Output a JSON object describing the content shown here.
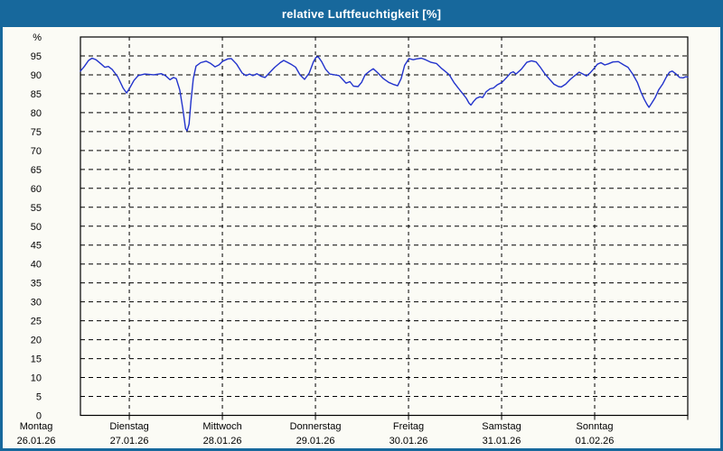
{
  "window": {
    "title": "relative Luftfeuchtigkeit [%]",
    "title_bar_color": "#17689c",
    "frame_color": "#17689c",
    "background_color": "#fbfbf5"
  },
  "chart_data": {
    "type": "line",
    "title": "relative Luftfeuchtigkeit [%]",
    "ylabel": "%",
    "xlabel": "",
    "unit_top_label": "%",
    "line_color": "#2233cc",
    "grid_color": "#000000",
    "grid_style": "dashed",
    "legend": "none",
    "ylim": [
      0,
      100
    ],
    "ytick_step": 5,
    "yticks": [
      0,
      5,
      10,
      15,
      20,
      25,
      30,
      35,
      40,
      45,
      50,
      55,
      60,
      65,
      70,
      75,
      80,
      85,
      90,
      95
    ],
    "x_start_hour": 11.4,
    "x_end_hour": 168,
    "hours_per_day": 24,
    "days": [
      {
        "name": "Montag",
        "date": "26.01.26"
      },
      {
        "name": "Dienstag",
        "date": "27.01.26"
      },
      {
        "name": "Mittwoch",
        "date": "28.01.26"
      },
      {
        "name": "Donnerstag",
        "date": "29.01.26"
      },
      {
        "name": "Freitag",
        "date": "30.01.26"
      },
      {
        "name": "Samstag",
        "date": "31.01.26"
      },
      {
        "name": "Sonntag",
        "date": "01.02.26"
      }
    ],
    "series": [
      {
        "name": "relative Luftfeuchtigkeit",
        "points": [
          [
            11.4,
            91.0
          ],
          [
            12.4,
            92.2
          ],
          [
            13.5,
            93.8
          ],
          [
            14.4,
            94.4
          ],
          [
            15.4,
            94.0
          ],
          [
            16.8,
            92.8
          ],
          [
            17.7,
            92.0
          ],
          [
            18.6,
            92.2
          ],
          [
            19.6,
            91.4
          ],
          [
            21.0,
            89.5
          ],
          [
            22.4,
            86.5
          ],
          [
            23.3,
            85.2
          ],
          [
            24.1,
            86.5
          ],
          [
            25.2,
            88.5
          ],
          [
            26.3,
            89.8
          ],
          [
            28.0,
            90.2
          ],
          [
            30.3,
            90.0
          ],
          [
            32.2,
            90.3
          ],
          [
            33.3,
            89.8
          ],
          [
            34.5,
            88.7
          ],
          [
            35.4,
            89.3
          ],
          [
            36.1,
            89.0
          ],
          [
            37.0,
            86.0
          ],
          [
            37.8,
            81.0
          ],
          [
            38.5,
            75.8
          ],
          [
            38.9,
            75.2
          ],
          [
            39.4,
            77.0
          ],
          [
            39.9,
            83.0
          ],
          [
            40.5,
            89.0
          ],
          [
            41.2,
            92.3
          ],
          [
            42.4,
            93.2
          ],
          [
            43.8,
            93.6
          ],
          [
            45.0,
            93.0
          ],
          [
            46.1,
            92.1
          ],
          [
            47.1,
            92.6
          ],
          [
            48.1,
            93.6
          ],
          [
            49.4,
            94.2
          ],
          [
            50.3,
            94.3
          ],
          [
            51.7,
            92.8
          ],
          [
            53.1,
            90.5
          ],
          [
            54.1,
            89.8
          ],
          [
            55.0,
            90.2
          ],
          [
            55.9,
            89.8
          ],
          [
            56.9,
            90.3
          ],
          [
            58.0,
            89.6
          ],
          [
            59.0,
            89.3
          ],
          [
            60.1,
            90.5
          ],
          [
            61.5,
            92.0
          ],
          [
            62.9,
            93.2
          ],
          [
            63.8,
            93.8
          ],
          [
            64.8,
            93.3
          ],
          [
            65.7,
            92.8
          ],
          [
            66.9,
            92.0
          ],
          [
            68.0,
            90.0
          ],
          [
            69.2,
            88.8
          ],
          [
            70.4,
            90.5
          ],
          [
            71.5,
            93.5
          ],
          [
            72.1,
            94.6
          ],
          [
            72.7,
            94.8
          ],
          [
            73.6,
            93.5
          ],
          [
            74.6,
            91.5
          ],
          [
            75.7,
            90.2
          ],
          [
            76.9,
            90.0
          ],
          [
            78.1,
            89.8
          ],
          [
            79.0,
            88.8
          ],
          [
            79.9,
            87.8
          ],
          [
            80.9,
            88.2
          ],
          [
            81.8,
            87.0
          ],
          [
            83.0,
            86.9
          ],
          [
            83.9,
            88.0
          ],
          [
            84.8,
            90.0
          ],
          [
            86.0,
            91.0
          ],
          [
            86.9,
            91.6
          ],
          [
            88.1,
            90.5
          ],
          [
            89.5,
            89.0
          ],
          [
            90.9,
            88.0
          ],
          [
            92.0,
            87.5
          ],
          [
            93.2,
            87.1
          ],
          [
            94.1,
            89.0
          ],
          [
            95.0,
            92.5
          ],
          [
            96.1,
            94.3
          ],
          [
            97.2,
            94.0
          ],
          [
            98.1,
            94.2
          ],
          [
            99.3,
            94.4
          ],
          [
            100.4,
            94.0
          ],
          [
            101.8,
            93.3
          ],
          [
            103.2,
            93.0
          ],
          [
            104.4,
            91.8
          ],
          [
            105.6,
            90.8
          ],
          [
            106.5,
            90.0
          ],
          [
            107.7,
            88.0
          ],
          [
            108.8,
            86.5
          ],
          [
            110.0,
            85.0
          ],
          [
            110.9,
            83.8
          ],
          [
            111.6,
            82.5
          ],
          [
            112.1,
            82.0
          ],
          [
            112.8,
            83.0
          ],
          [
            113.5,
            83.8
          ],
          [
            114.4,
            84.2
          ],
          [
            115.1,
            84.0
          ],
          [
            116.0,
            85.5
          ],
          [
            117.0,
            86.3
          ],
          [
            117.9,
            86.5
          ],
          [
            118.8,
            87.3
          ],
          [
            120.1,
            88.0
          ],
          [
            121.2,
            89.2
          ],
          [
            122.3,
            90.5
          ],
          [
            123.0,
            90.8
          ],
          [
            123.7,
            90.2
          ],
          [
            125.1,
            91.5
          ],
          [
            126.5,
            93.3
          ],
          [
            127.7,
            93.7
          ],
          [
            128.9,
            93.4
          ],
          [
            130.0,
            92.0
          ],
          [
            131.2,
            90.2
          ],
          [
            132.4,
            88.8
          ],
          [
            133.5,
            87.5
          ],
          [
            134.7,
            86.9
          ],
          [
            135.4,
            86.8
          ],
          [
            136.5,
            87.5
          ],
          [
            137.7,
            88.8
          ],
          [
            138.9,
            89.8
          ],
          [
            140.0,
            90.7
          ],
          [
            141.0,
            90.2
          ],
          [
            141.9,
            89.7
          ],
          [
            142.8,
            90.5
          ],
          [
            144.1,
            92.0
          ],
          [
            144.7,
            92.8
          ],
          [
            145.6,
            93.2
          ],
          [
            146.6,
            92.6
          ],
          [
            147.5,
            92.9
          ],
          [
            148.7,
            93.4
          ],
          [
            150.1,
            93.5
          ],
          [
            151.5,
            92.6
          ],
          [
            152.6,
            92.0
          ],
          [
            153.8,
            90.2
          ],
          [
            155.0,
            88.0
          ],
          [
            155.9,
            85.5
          ],
          [
            156.8,
            83.5
          ],
          [
            157.5,
            82.2
          ],
          [
            158.0,
            81.4
          ],
          [
            158.7,
            82.5
          ],
          [
            159.6,
            84.0
          ],
          [
            160.5,
            86.0
          ],
          [
            161.5,
            87.5
          ],
          [
            162.4,
            89.3
          ],
          [
            163.3,
            90.7
          ],
          [
            164.0,
            91.0
          ],
          [
            165.0,
            90.2
          ],
          [
            165.9,
            89.3
          ],
          [
            166.8,
            89.2
          ],
          [
            167.5,
            89.5
          ],
          [
            168.0,
            89.4
          ]
        ]
      }
    ]
  }
}
